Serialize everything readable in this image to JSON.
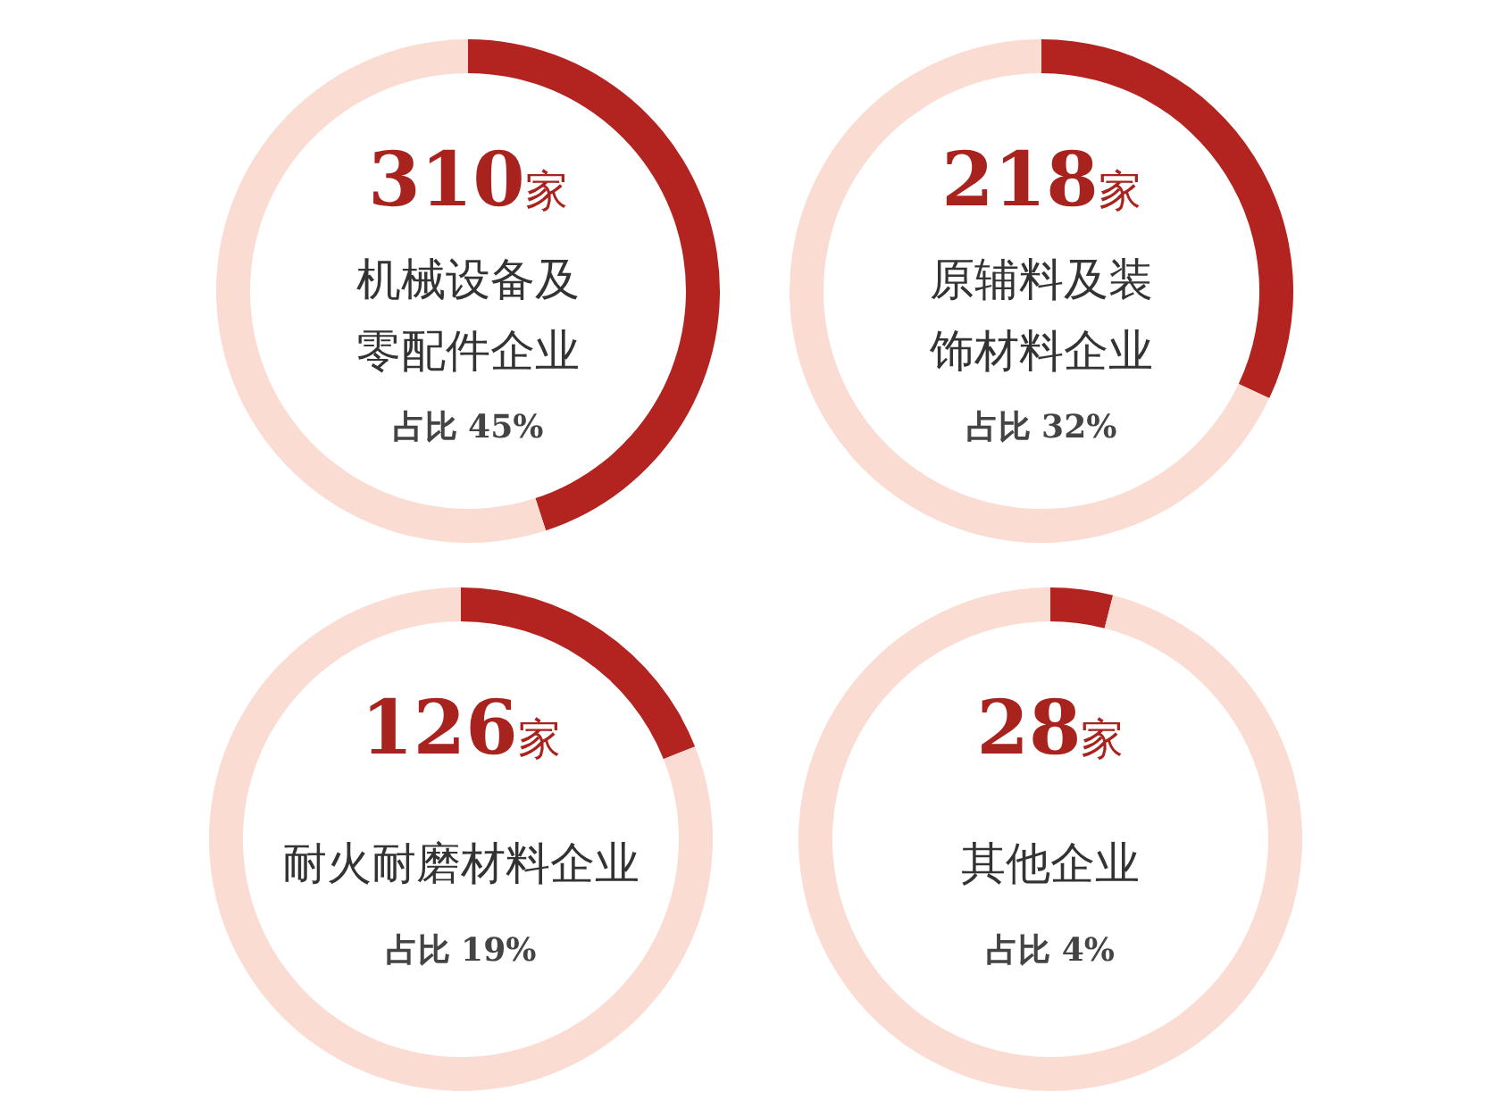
{
  "chart_data": [
    {
      "type": "donut",
      "title": "310家",
      "subtitle": "机械设备及零配件企业",
      "annotations": [
        "占比 45%"
      ],
      "categories": [
        null,
        null
      ],
      "values": [
        45,
        55
      ],
      "colors": [
        "#b3231f",
        "#fadcd2"
      ]
    },
    {
      "type": "donut",
      "title": "218家",
      "subtitle": "原辅料及装饰材料企业",
      "annotations": [
        "占比 32%"
      ],
      "categories": [
        null,
        null
      ],
      "values": [
        32,
        68
      ],
      "colors": [
        "#b3231f",
        "#fadcd2"
      ]
    },
    {
      "type": "donut",
      "title": "126家",
      "subtitle": "耐火耐磨材料企业",
      "annotations": [
        "占比 19%"
      ],
      "categories": [
        null,
        null
      ],
      "values": [
        19,
        81
      ],
      "colors": [
        "#b3231f",
        "#fadcd2"
      ]
    },
    {
      "type": "donut",
      "title": "28家",
      "subtitle": "其他企业",
      "annotations": [
        "占比 4%"
      ],
      "categories": [
        null,
        null
      ],
      "values": [
        4,
        96
      ],
      "colors": [
        "#b3231f",
        "#fadcd2"
      ]
    }
  ]
}
